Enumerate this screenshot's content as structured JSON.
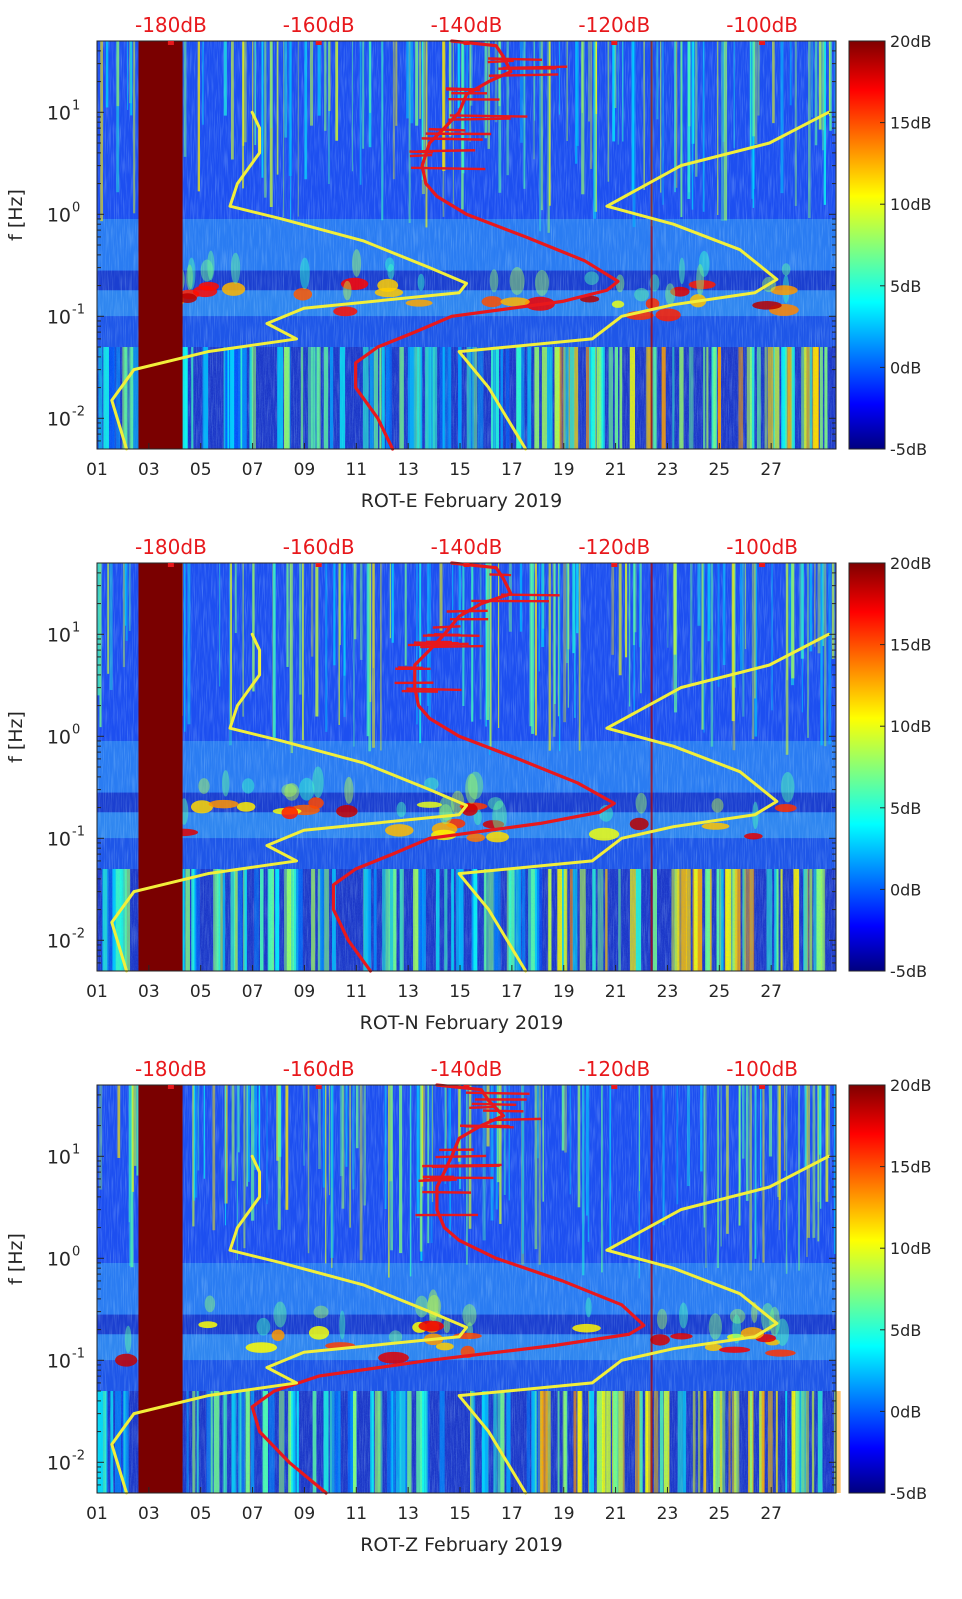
{
  "figure": {
    "background": "#ffffff",
    "db_color": "#e8181c",
    "pnlm_color": "#e8181c",
    "nlnm_color": "#f2ef3a",
    "band_color": "#7a0000"
  },
  "colorbar": {
    "ticks": [
      "20dB",
      "15dB",
      "10dB",
      "5dB",
      "0dB",
      "-5dB"
    ],
    "range": [
      -5,
      20
    ],
    "colormap": "jet"
  },
  "chart_data": [
    {
      "type": "heatmap",
      "title": "",
      "xlabel": "ROT-E February 2019",
      "ylabel": "f [Hz]",
      "x_ticks": [
        "01",
        "03",
        "05",
        "07",
        "09",
        "11",
        "13",
        "15",
        "17",
        "19",
        "21",
        "23",
        "25",
        "27"
      ],
      "y_ticks": [
        "10^1",
        "10^0",
        "10^-1",
        "10^-2"
      ],
      "y_scale": "log",
      "xlim": [
        1,
        29.5
      ],
      "ylim": [
        0.005,
        50
      ],
      "top_axis_ticks": [
        "-180dB",
        "-160dB",
        "-140dB",
        "-120dB",
        "-100dB"
      ],
      "top_axis_range": [
        -190,
        -90
      ],
      "data_gap": {
        "from_day": 2.6,
        "to_day": 4.3
      },
      "series": [
        {
          "kind": "red",
          "points": [
            [
              -142,
              50
            ],
            [
              -136,
              45
            ],
            [
              -135,
              35
            ],
            [
              -134,
              25
            ],
            [
              -137,
              20
            ],
            [
              -140,
              15
            ],
            [
              -141,
              10
            ],
            [
              -143,
              7
            ],
            [
              -145,
              5
            ],
            [
              -146,
              3
            ],
            [
              -145.5,
              2
            ],
            [
              -144,
              1.5
            ],
            [
              -140,
              1
            ],
            [
              -132,
              0.6
            ],
            [
              -124,
              0.35
            ],
            [
              -119.5,
              0.22
            ],
            [
              -121,
              0.18
            ],
            [
              -127,
              0.14
            ],
            [
              -142,
              0.1
            ],
            [
              -147,
              0.07
            ],
            [
              -152,
              0.05
            ],
            [
              -155,
              0.035
            ],
            [
              -155,
              0.02
            ],
            [
              -152,
              0.01
            ],
            [
              -150,
              0.005
            ]
          ]
        },
        {
          "kind": "yellow",
          "points": [
            [
              -169,
              10
            ],
            [
              -168,
              7
            ],
            [
              -168,
              4
            ],
            [
              -171,
              2
            ],
            [
              -172,
              1.2
            ],
            [
              -165,
              0.9
            ],
            [
              -154,
              0.55
            ],
            [
              -145,
              0.3
            ],
            [
              -140,
              0.21
            ],
            [
              -141,
              0.17
            ],
            [
              -162,
              0.12
            ],
            [
              -167,
              0.085
            ],
            [
              -163,
              0.06
            ],
            [
              -175,
              0.045
            ],
            [
              -185,
              0.03
            ],
            [
              -188,
              0.015
            ],
            [
              -186,
              0.005
            ]
          ]
        },
        {
          "kind": "yellow",
          "points": [
            [
              -91,
              10
            ],
            [
              -99,
              5
            ],
            [
              -111,
              3
            ],
            [
              -121,
              1.2
            ],
            [
              -112,
              0.8
            ],
            [
              -103,
              0.45
            ],
            [
              -98,
              0.23
            ],
            [
              -101,
              0.17
            ],
            [
              -112,
              0.13
            ],
            [
              -119,
              0.1
            ],
            [
              -123,
              0.06
            ],
            [
              -141,
              0.045
            ],
            [
              -137,
              0.02
            ],
            [
              -132,
              0.005
            ]
          ]
        }
      ]
    },
    {
      "type": "heatmap",
      "title": "",
      "xlabel": "ROT-N February 2019",
      "ylabel": "f [Hz]",
      "x_ticks": [
        "01",
        "03",
        "05",
        "07",
        "09",
        "11",
        "13",
        "15",
        "17",
        "19",
        "21",
        "23",
        "25",
        "27"
      ],
      "y_ticks": [
        "10^1",
        "10^0",
        "10^-1",
        "10^-2"
      ],
      "y_scale": "log",
      "xlim": [
        1,
        29.5
      ],
      "ylim": [
        0.005,
        50
      ],
      "top_axis_ticks": [
        "-180dB",
        "-160dB",
        "-140dB",
        "-120dB",
        "-100dB"
      ],
      "top_axis_range": [
        -190,
        -90
      ],
      "data_gap": {
        "from_day": 2.6,
        "to_day": 4.3
      },
      "series": [
        {
          "kind": "red",
          "points": [
            [
              -142,
              50
            ],
            [
              -136,
              45
            ],
            [
              -135,
              35
            ],
            [
              -134,
              25
            ],
            [
              -138,
              20
            ],
            [
              -141,
              15
            ],
            [
              -143,
              10
            ],
            [
              -145,
              7
            ],
            [
              -147,
              5
            ],
            [
              -147,
              3
            ],
            [
              -146.5,
              2
            ],
            [
              -145,
              1.5
            ],
            [
              -141,
              1
            ],
            [
              -133,
              0.6
            ],
            [
              -125,
              0.35
            ],
            [
              -120,
              0.22
            ],
            [
              -122,
              0.18
            ],
            [
              -130,
              0.14
            ],
            [
              -145,
              0.1
            ],
            [
              -150,
              0.07
            ],
            [
              -155,
              0.05
            ],
            [
              -158,
              0.035
            ],
            [
              -158,
              0.02
            ],
            [
              -156,
              0.01
            ],
            [
              -153,
              0.005
            ]
          ]
        },
        {
          "kind": "yellow",
          "points": [
            [
              -169,
              10
            ],
            [
              -168,
              7
            ],
            [
              -168,
              4
            ],
            [
              -171,
              2
            ],
            [
              -172,
              1.2
            ],
            [
              -165,
              0.9
            ],
            [
              -154,
              0.55
            ],
            [
              -145,
              0.3
            ],
            [
              -140,
              0.21
            ],
            [
              -141,
              0.17
            ],
            [
              -162,
              0.12
            ],
            [
              -167,
              0.085
            ],
            [
              -163,
              0.06
            ],
            [
              -175,
              0.045
            ],
            [
              -185,
              0.03
            ],
            [
              -188,
              0.015
            ],
            [
              -186,
              0.005
            ]
          ]
        },
        {
          "kind": "yellow",
          "points": [
            [
              -91,
              10
            ],
            [
              -99,
              5
            ],
            [
              -111,
              3
            ],
            [
              -121,
              1.2
            ],
            [
              -112,
              0.8
            ],
            [
              -103,
              0.45
            ],
            [
              -98,
              0.23
            ],
            [
              -101,
              0.17
            ],
            [
              -112,
              0.13
            ],
            [
              -119,
              0.1
            ],
            [
              -123,
              0.06
            ],
            [
              -141,
              0.045
            ],
            [
              -137,
              0.02
            ],
            [
              -132,
              0.005
            ]
          ]
        }
      ]
    },
    {
      "type": "heatmap",
      "title": "",
      "xlabel": "ROT-Z February 2019",
      "ylabel": "f [Hz]",
      "x_ticks": [
        "01",
        "03",
        "05",
        "07",
        "09",
        "11",
        "13",
        "15",
        "17",
        "19",
        "21",
        "23",
        "25",
        "27"
      ],
      "y_ticks": [
        "10^1",
        "10^0",
        "10^-1",
        "10^-2"
      ],
      "y_scale": "log",
      "xlim": [
        1,
        29.5
      ],
      "ylim": [
        0.005,
        50
      ],
      "top_axis_ticks": [
        "-180dB",
        "-160dB",
        "-140dB",
        "-120dB",
        "-100dB"
      ],
      "top_axis_range": [
        -190,
        -90
      ],
      "data_gap": {
        "from_day": 2.6,
        "to_day": 4.3
      },
      "series": [
        {
          "kind": "red",
          "points": [
            [
              -144,
              50
            ],
            [
              -138,
              45
            ],
            [
              -137,
              35
            ],
            [
              -135,
              25
            ],
            [
              -138,
              20
            ],
            [
              -141,
              15
            ],
            [
              -142,
              10
            ],
            [
              -143,
              7
            ],
            [
              -144,
              5
            ],
            [
              -144,
              3
            ],
            [
              -143,
              2
            ],
            [
              -141,
              1.5
            ],
            [
              -136,
              1
            ],
            [
              -127,
              0.6
            ],
            [
              -119,
              0.35
            ],
            [
              -116,
              0.22
            ],
            [
              -118,
              0.18
            ],
            [
              -128,
              0.14
            ],
            [
              -145,
              0.1
            ],
            [
              -160,
              0.07
            ],
            [
              -166,
              0.05
            ],
            [
              -169,
              0.035
            ],
            [
              -168,
              0.02
            ],
            [
              -164,
              0.01
            ],
            [
              -159,
              0.005
            ]
          ]
        },
        {
          "kind": "yellow",
          "points": [
            [
              -169,
              10
            ],
            [
              -168,
              7
            ],
            [
              -168,
              4
            ],
            [
              -171,
              2
            ],
            [
              -172,
              1.2
            ],
            [
              -165,
              0.9
            ],
            [
              -154,
              0.55
            ],
            [
              -145,
              0.3
            ],
            [
              -140,
              0.21
            ],
            [
              -141,
              0.17
            ],
            [
              -162,
              0.12
            ],
            [
              -167,
              0.085
            ],
            [
              -163,
              0.06
            ],
            [
              -175,
              0.045
            ],
            [
              -185,
              0.03
            ],
            [
              -188,
              0.015
            ],
            [
              -186,
              0.005
            ]
          ]
        },
        {
          "kind": "yellow",
          "points": [
            [
              -91,
              10
            ],
            [
              -99,
              5
            ],
            [
              -111,
              3
            ],
            [
              -121,
              1.2
            ],
            [
              -112,
              0.8
            ],
            [
              -103,
              0.45
            ],
            [
              -98,
              0.23
            ],
            [
              -101,
              0.17
            ],
            [
              -112,
              0.13
            ],
            [
              -119,
              0.1
            ],
            [
              -123,
              0.06
            ],
            [
              -141,
              0.045
            ],
            [
              -137,
              0.02
            ],
            [
              -132,
              0.005
            ]
          ]
        }
      ]
    }
  ]
}
